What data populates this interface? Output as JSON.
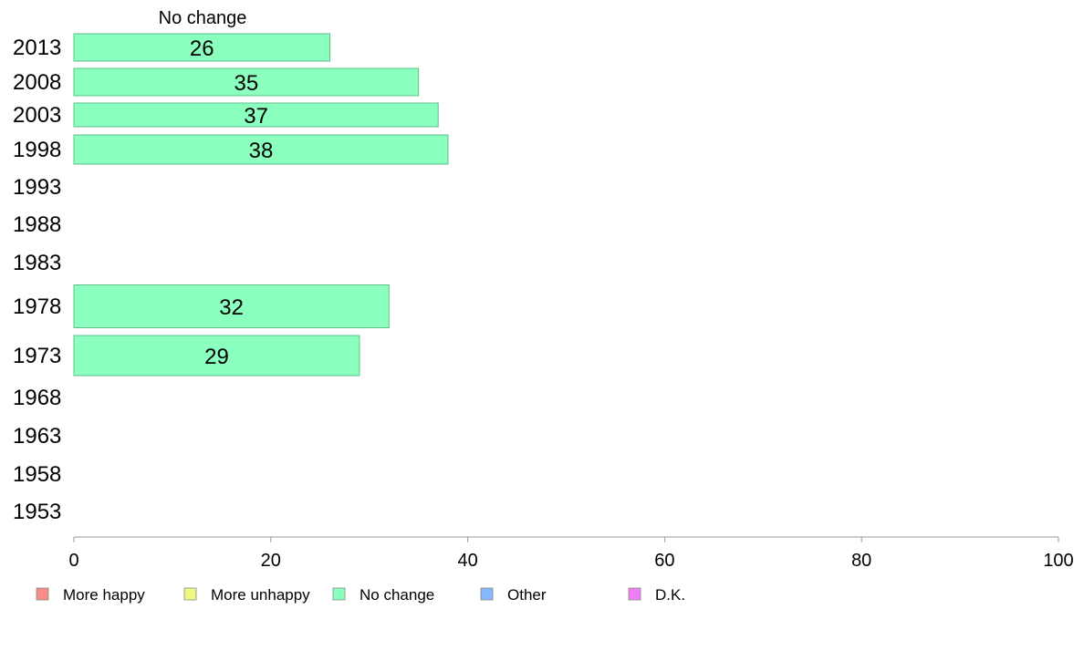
{
  "chart_data": {
    "type": "bar",
    "orientation": "horizontal",
    "title": "No change",
    "categories": [
      "2013",
      "2008",
      "2003",
      "1998",
      "1993",
      "1988",
      "1983",
      "1978",
      "1973",
      "1968",
      "1963",
      "1958",
      "1953"
    ],
    "series": [
      {
        "name": "No change",
        "values": [
          26,
          35,
          37,
          38,
          null,
          null,
          null,
          32,
          29,
          null,
          null,
          null,
          null
        ]
      }
    ],
    "xlim": [
      0,
      100
    ],
    "xticks": [
      0,
      20,
      40,
      60,
      80,
      100
    ],
    "xtick_labels": [
      "0",
      "20",
      "40",
      "60",
      "80",
      "100"
    ],
    "grid": false,
    "legend_position": "bottom",
    "legend": [
      {
        "label": "More happy",
        "color": "#f88c86"
      },
      {
        "label": "More unhappy",
        "color": "#ecf880"
      },
      {
        "label": "No change",
        "color": "#8affbe"
      },
      {
        "label": "Other",
        "color": "#86b8fc"
      },
      {
        "label": "D.K.",
        "color": "#f07ef5"
      }
    ],
    "bar_color": "#8affbe"
  }
}
